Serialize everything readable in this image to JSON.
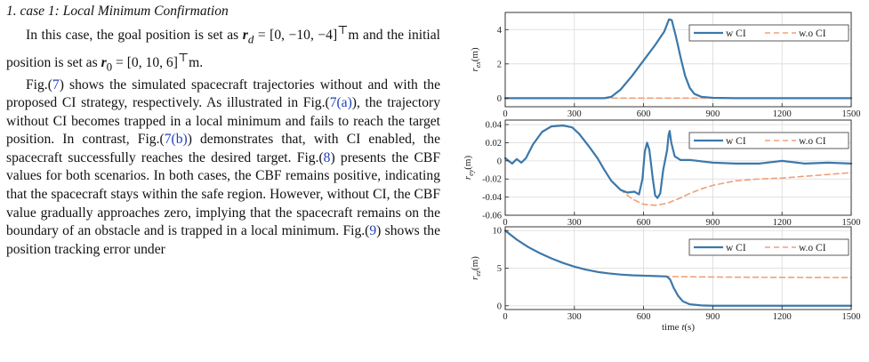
{
  "section": {
    "heading": "1.  case 1: Local Minimum Confirmation"
  },
  "paragraph1": {
    "t1": "In this case, the goal position is set as ",
    "r_d_sym": "r",
    "r_d_sub": "d",
    "eq1": " = [0, −10, −4]",
    "T1": "⊤",
    "m1": "m and the initial position is set as ",
    "r0_sym": "r",
    "r0_sub": "0",
    "eq2": " = [0, 10, 6]",
    "T2": "⊤",
    "m2": "m."
  },
  "paragraph2": {
    "t1": "Fig.(",
    "ref1": "7",
    "t2": ") shows the simulated spacecraft trajectories without and with the proposed CI strategy, respectively. As illustrated in Fig.(",
    "ref2": "7(a)",
    "t3": "), the trajectory without CI becomes trapped in a local minimum and fails to reach the target position. In contrast, Fig.(",
    "ref3": "7(b)",
    "t4": ") demonstrates that, with CI enabled, the spacecraft successfully reaches the desired target. Fig.(",
    "ref4": "8",
    "t5": ") presents the CBF values for both scenarios. In both cases, the CBF remains positive, indicating that the spacecraft stays within the safe region. However, without CI, the CBF value gradually approaches zero, implying that the spacecraft remains on the boundary of an obstacle and is trapped in a local minimum. Fig.(",
    "ref5": "9",
    "t6": ") shows the position tracking error under"
  },
  "colors": {
    "with_ci": "#3c78aa",
    "without_ci": "#f0a07a",
    "reference_link": "#1f3fbf"
  },
  "chart_data": [
    {
      "type": "line",
      "ylabel": "r_ex(m)",
      "xlim": [
        0,
        1500
      ],
      "ylim": [
        -0.5,
        5
      ],
      "x_ticks": [
        "0",
        "300",
        "600",
        "900",
        "1200",
        "1500"
      ],
      "y_ticks": [
        {
          "v": 0,
          "label": "0"
        },
        {
          "v": 2,
          "label": "2"
        },
        {
          "v": 4,
          "label": "4"
        }
      ],
      "grid": true,
      "legend": "top-right",
      "series": [
        {
          "name": "w CI",
          "style": "solid",
          "points": [
            [
              0,
              0
            ],
            [
              430,
              0
            ],
            [
              460,
              0.08
            ],
            [
              500,
              0.5
            ],
            [
              550,
              1.3
            ],
            [
              600,
              2.2
            ],
            [
              650,
              3.1
            ],
            [
              690,
              3.9
            ],
            [
              710,
              4.6
            ],
            [
              722,
              4.55
            ],
            [
              740,
              3.6
            ],
            [
              760,
              2.4
            ],
            [
              780,
              1.3
            ],
            [
              800,
              0.6
            ],
            [
              820,
              0.25
            ],
            [
              850,
              0.08
            ],
            [
              900,
              0.02
            ],
            [
              1000,
              0
            ],
            [
              1500,
              0
            ]
          ]
        },
        {
          "name": "w.o CI",
          "style": "dashed",
          "points": [
            [
              0,
              0
            ],
            [
              1500,
              0
            ]
          ]
        }
      ]
    },
    {
      "type": "line",
      "ylabel": "r_ey(m)",
      "xlim": [
        0,
        1500
      ],
      "ylim": [
        -0.06,
        0.045
      ],
      "x_ticks": [
        "0",
        "300",
        "600",
        "900",
        "1200",
        "1500"
      ],
      "y_ticks": [
        {
          "v": 0.04,
          "label": "0.04"
        },
        {
          "v": 0.02,
          "label": "0.02"
        },
        {
          "v": 0,
          "label": "0"
        },
        {
          "v": -0.02,
          "label": "-0.02"
        },
        {
          "v": -0.04,
          "label": "-0.04"
        },
        {
          "v": -0.06,
          "label": "-0.06"
        }
      ],
      "grid": true,
      "legend": "top-right",
      "series": [
        {
          "name": "w CI",
          "style": "solid",
          "points": [
            [
              0,
              0.003
            ],
            [
              15,
              0
            ],
            [
              30,
              -0.003
            ],
            [
              50,
              0.002
            ],
            [
              70,
              -0.002
            ],
            [
              90,
              0.003
            ],
            [
              120,
              0.018
            ],
            [
              160,
              0.032
            ],
            [
              200,
              0.038
            ],
            [
              250,
              0.039
            ],
            [
              290,
              0.037
            ],
            [
              320,
              0.03
            ],
            [
              360,
              0.017
            ],
            [
              400,
              0.003
            ],
            [
              430,
              -0.01
            ],
            [
              460,
              -0.022
            ],
            [
              500,
              -0.032
            ],
            [
              530,
              -0.035
            ],
            [
              560,
              -0.034
            ],
            [
              580,
              -0.037
            ],
            [
              595,
              -0.02
            ],
            [
              605,
              0.01
            ],
            [
              615,
              0.02
            ],
            [
              625,
              0.012
            ],
            [
              640,
              -0.02
            ],
            [
              650,
              -0.038
            ],
            [
              660,
              -0.041
            ],
            [
              672,
              -0.036
            ],
            [
              685,
              -0.01
            ],
            [
              695,
              0.003
            ],
            [
              702,
              0.012
            ],
            [
              708,
              0.028
            ],
            [
              713,
              0.033
            ],
            [
              720,
              0.02
            ],
            [
              735,
              0.005
            ],
            [
              760,
              0.001
            ],
            [
              800,
              0.001
            ],
            [
              900,
              -0.002
            ],
            [
              1000,
              -0.003
            ],
            [
              1100,
              -0.003
            ],
            [
              1200,
              0
            ],
            [
              1300,
              -0.003
            ],
            [
              1400,
              -0.002
            ],
            [
              1500,
              -0.003
            ]
          ]
        },
        {
          "name": "w.o CI",
          "style": "dashed",
          "points": [
            [
              0,
              0.003
            ],
            [
              15,
              0
            ],
            [
              30,
              -0.003
            ],
            [
              50,
              0.002
            ],
            [
              70,
              -0.002
            ],
            [
              90,
              0.003
            ],
            [
              120,
              0.018
            ],
            [
              160,
              0.032
            ],
            [
              200,
              0.038
            ],
            [
              250,
              0.039
            ],
            [
              290,
              0.037
            ],
            [
              320,
              0.03
            ],
            [
              360,
              0.017
            ],
            [
              400,
              0.003
            ],
            [
              430,
              -0.01
            ],
            [
              460,
              -0.022
            ],
            [
              500,
              -0.032
            ],
            [
              550,
              -0.042
            ],
            [
              600,
              -0.048
            ],
            [
              650,
              -0.049
            ],
            [
              700,
              -0.047
            ],
            [
              750,
              -0.042
            ],
            [
              800,
              -0.036
            ],
            [
              850,
              -0.031
            ],
            [
              900,
              -0.027
            ],
            [
              1000,
              -0.022
            ],
            [
              1100,
              -0.02
            ],
            [
              1200,
              -0.019
            ],
            [
              1300,
              -0.017
            ],
            [
              1400,
              -0.015
            ],
            [
              1500,
              -0.013
            ]
          ]
        }
      ]
    },
    {
      "type": "line",
      "ylabel": "r_ez(m)",
      "xlabel": "time t(s)",
      "xlim": [
        0,
        1500
      ],
      "ylim": [
        -0.5,
        10.5
      ],
      "x_ticks": [
        "0",
        "300",
        "600",
        "900",
        "1200",
        "1500"
      ],
      "y_ticks": [
        {
          "v": 10,
          "label": "10"
        },
        {
          "v": 5,
          "label": "5"
        },
        {
          "v": 0,
          "label": "0"
        }
      ],
      "grid": true,
      "legend": "top-right",
      "series": [
        {
          "name": "w CI",
          "style": "solid",
          "points": [
            [
              0,
              10
            ],
            [
              50,
              8.8
            ],
            [
              100,
              7.8
            ],
            [
              150,
              7
            ],
            [
              200,
              6.3
            ],
            [
              250,
              5.7
            ],
            [
              300,
              5.2
            ],
            [
              350,
              4.8
            ],
            [
              400,
              4.5
            ],
            [
              450,
              4.3
            ],
            [
              500,
              4.15
            ],
            [
              550,
              4.05
            ],
            [
              600,
              4
            ],
            [
              650,
              3.95
            ],
            [
              700,
              3.9
            ],
            [
              715,
              3.5
            ],
            [
              730,
              2.4
            ],
            [
              750,
              1.3
            ],
            [
              770,
              0.6
            ],
            [
              800,
              0.2
            ],
            [
              850,
              0.05
            ],
            [
              900,
              0
            ],
            [
              1500,
              0
            ]
          ]
        },
        {
          "name": "w.o CI",
          "style": "dashed",
          "points": [
            [
              0,
              10
            ],
            [
              50,
              8.8
            ],
            [
              100,
              7.8
            ],
            [
              150,
              7
            ],
            [
              200,
              6.3
            ],
            [
              250,
              5.7
            ],
            [
              300,
              5.2
            ],
            [
              350,
              4.8
            ],
            [
              400,
              4.5
            ],
            [
              450,
              4.3
            ],
            [
              500,
              4.15
            ],
            [
              550,
              4.05
            ],
            [
              600,
              4
            ],
            [
              650,
              3.95
            ],
            [
              700,
              3.9
            ],
            [
              800,
              3.85
            ],
            [
              1000,
              3.8
            ],
            [
              1200,
              3.78
            ],
            [
              1500,
              3.75
            ]
          ]
        }
      ]
    }
  ]
}
